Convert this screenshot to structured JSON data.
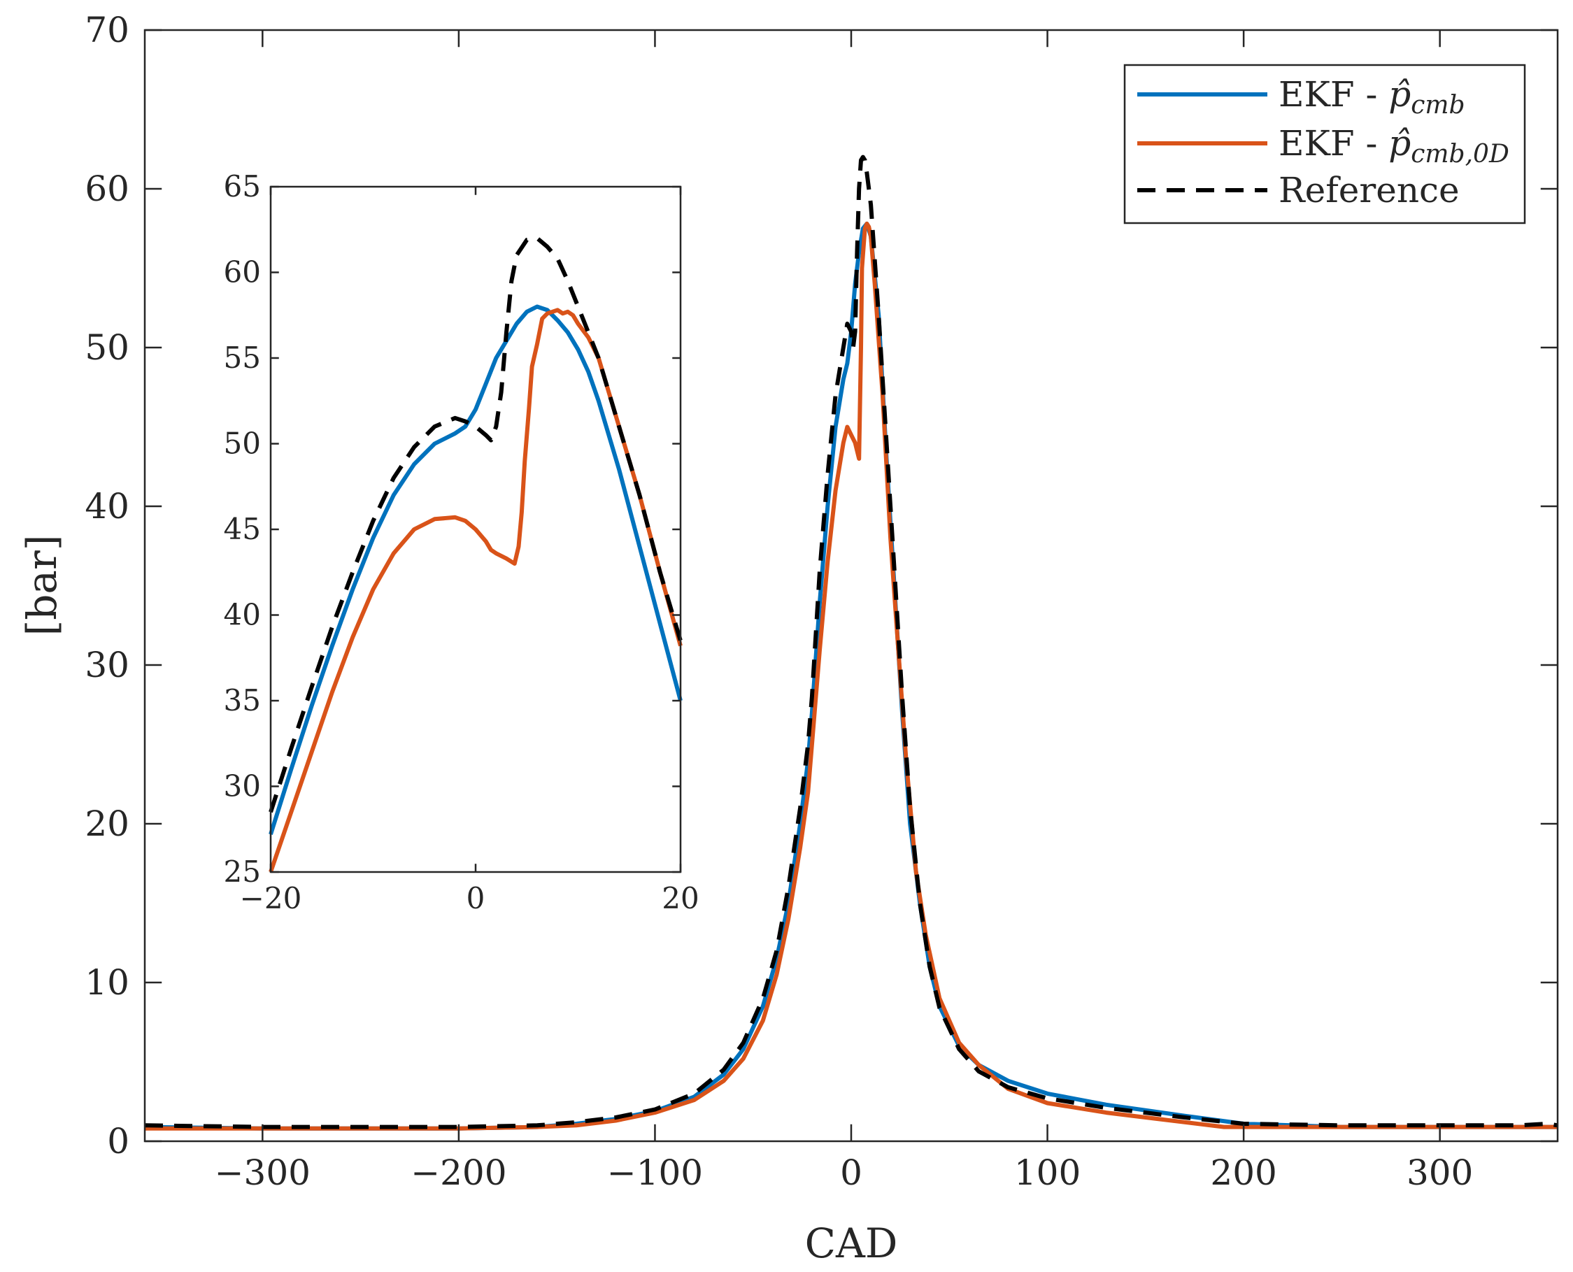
{
  "chart_data": [
    {
      "id": "main",
      "type": "line",
      "xlabel": "CAD",
      "ylabel": "[bar]",
      "xlim": [
        -360,
        360
      ],
      "ylim": [
        0,
        70
      ],
      "xticks": [
        -300,
        -200,
        -100,
        0,
        100,
        200,
        300
      ],
      "yticks": [
        0,
        10,
        20,
        30,
        40,
        50,
        60,
        70
      ],
      "xtick_labels": [
        "−300",
        "−200",
        "−100",
        "0",
        "100",
        "200",
        "300"
      ],
      "ytick_labels": [
        "0",
        "10",
        "20",
        "30",
        "40",
        "50",
        "60",
        "70"
      ],
      "legend": {
        "position": "top-right",
        "entries": [
          {
            "prefix": "EKF - ",
            "symbol": "p̂",
            "subscript": "cmb",
            "series": "ekf"
          },
          {
            "prefix": "EKF - ",
            "symbol": "p̂",
            "subscript": "cmb,0D",
            "series": "ekf0d"
          },
          {
            "prefix": "",
            "symbol": "",
            "subscript": "",
            "text": "Reference",
            "series": "ref"
          }
        ]
      },
      "series": [
        {
          "key": "ekf",
          "name": "EKF - p̂_cmb",
          "color": "#0072BD",
          "style": "solid",
          "points": [
            [
              -360,
              0.9
            ],
            [
              -300,
              0.8
            ],
            [
              -200,
              0.8
            ],
            [
              -160,
              0.9
            ],
            [
              -140,
              1.1
            ],
            [
              -120,
              1.4
            ],
            [
              -100,
              1.9
            ],
            [
              -80,
              2.8
            ],
            [
              -65,
              4.2
            ],
            [
              -55,
              5.8
            ],
            [
              -45,
              8.5
            ],
            [
              -38,
              11.5
            ],
            [
              -32,
              15
            ],
            [
              -26,
              20
            ],
            [
              -22,
              24
            ],
            [
              -20,
              27
            ],
            [
              -16,
              34
            ],
            [
              -12,
              40
            ],
            [
              -8,
              45
            ],
            [
              -4,
              48
            ],
            [
              -2,
              49
            ],
            [
              0,
              51
            ],
            [
              2,
              54
            ],
            [
              4,
              56
            ],
            [
              6,
              57.5
            ],
            [
              8,
              57.8
            ],
            [
              10,
              57
            ],
            [
              14,
              52
            ],
            [
              18,
              43
            ],
            [
              22,
              35
            ],
            [
              26,
              27
            ],
            [
              30,
              20
            ],
            [
              35,
              15
            ],
            [
              40,
              11
            ],
            [
              45,
              8.5
            ],
            [
              55,
              6
            ],
            [
              65,
              4.8
            ],
            [
              80,
              3.8
            ],
            [
              100,
              3
            ],
            [
              130,
              2.3
            ],
            [
              170,
              1.6
            ],
            [
              200,
              1.1
            ],
            [
              250,
              0.9
            ],
            [
              300,
              0.9
            ],
            [
              340,
              0.9
            ],
            [
              360,
              0.9
            ]
          ]
        },
        {
          "key": "ekf0d",
          "name": "EKF - p̂_cmb,0D",
          "color": "#D95319",
          "style": "solid",
          "points": [
            [
              -360,
              0.8
            ],
            [
              -300,
              0.8
            ],
            [
              -200,
              0.8
            ],
            [
              -160,
              0.9
            ],
            [
              -140,
              1.0
            ],
            [
              -120,
              1.3
            ],
            [
              -100,
              1.8
            ],
            [
              -80,
              2.6
            ],
            [
              -65,
              3.8
            ],
            [
              -55,
              5.2
            ],
            [
              -45,
              7.6
            ],
            [
              -38,
              10.5
            ],
            [
              -32,
              14
            ],
            [
              -26,
              18.5
            ],
            [
              -22,
              22
            ],
            [
              -20,
              25
            ],
            [
              -16,
              31
            ],
            [
              -12,
              36.5
            ],
            [
              -8,
              41
            ],
            [
              -4,
              44
            ],
            [
              -2,
              45
            ],
            [
              0,
              44.5
            ],
            [
              2,
              44
            ],
            [
              3,
              43.5
            ],
            [
              4,
              43
            ],
            [
              5,
              50
            ],
            [
              5.5,
              55
            ],
            [
              7,
              57.5
            ],
            [
              8,
              57.8
            ],
            [
              9,
              57.6
            ],
            [
              10,
              57
            ],
            [
              12,
              54
            ],
            [
              16,
              47
            ],
            [
              20,
              38
            ],
            [
              24,
              31
            ],
            [
              28,
              24
            ],
            [
              33,
              17
            ],
            [
              38,
              13
            ],
            [
              45,
              9
            ],
            [
              55,
              6.2
            ],
            [
              65,
              4.8
            ],
            [
              80,
              3.3
            ],
            [
              100,
              2.4
            ],
            [
              130,
              1.8
            ],
            [
              170,
              1.2
            ],
            [
              190,
              0.9
            ],
            [
              250,
              0.9
            ],
            [
              300,
              0.9
            ],
            [
              340,
              0.9
            ],
            [
              360,
              0.9
            ]
          ]
        },
        {
          "key": "ref",
          "name": "Reference",
          "color": "#000000",
          "style": "dashed",
          "points": [
            [
              -360,
              1.0
            ],
            [
              -300,
              0.9
            ],
            [
              -200,
              0.9
            ],
            [
              -160,
              1.0
            ],
            [
              -140,
              1.2
            ],
            [
              -120,
              1.5
            ],
            [
              -100,
              2.0
            ],
            [
              -80,
              3.0
            ],
            [
              -65,
              4.5
            ],
            [
              -55,
              6.2
            ],
            [
              -45,
              9
            ],
            [
              -38,
              12
            ],
            [
              -32,
              16
            ],
            [
              -26,
              21
            ],
            [
              -22,
              25
            ],
            [
              -20,
              28
            ],
            [
              -16,
              36
            ],
            [
              -12,
              42
            ],
            [
              -8,
              47
            ],
            [
              -4,
              50
            ],
            [
              -2,
              51.5
            ],
            [
              0,
              51
            ],
            [
              1,
              50
            ],
            [
              2,
              51
            ],
            [
              3,
              56
            ],
            [
              4,
              60
            ],
            [
              5,
              61.8
            ],
            [
              6,
              62
            ],
            [
              7,
              61.8
            ],
            [
              8,
              61
            ],
            [
              10,
              59
            ],
            [
              14,
              52
            ],
            [
              18,
              44
            ],
            [
              22,
              36
            ],
            [
              26,
              28
            ],
            [
              30,
              21
            ],
            [
              35,
              15
            ],
            [
              40,
              11
            ],
            [
              45,
              8.4
            ],
            [
              55,
              5.8
            ],
            [
              65,
              4.4
            ],
            [
              80,
              3.4
            ],
            [
              100,
              2.7
            ],
            [
              130,
              2.1
            ],
            [
              170,
              1.5
            ],
            [
              200,
              1.1
            ],
            [
              250,
              1.0
            ],
            [
              300,
              1.0
            ],
            [
              340,
              1.0
            ],
            [
              355,
              1.1
            ],
            [
              360,
              1.0
            ]
          ]
        }
      ]
    },
    {
      "id": "inset",
      "type": "line",
      "xlim": [
        -20,
        20
      ],
      "ylim": [
        25,
        65
      ],
      "xticks": [
        -20,
        0,
        20
      ],
      "yticks": [
        25,
        30,
        35,
        40,
        45,
        50,
        55,
        60,
        65
      ],
      "xtick_labels": [
        "−20",
        "0",
        "20"
      ],
      "ytick_labels": [
        "25",
        "30",
        "35",
        "40",
        "45",
        "50",
        "55",
        "60",
        "65"
      ],
      "series": [
        {
          "key": "ekf",
          "color": "#0072BD",
          "style": "solid",
          "points": [
            [
              -20,
              27.2
            ],
            [
              -18,
              31
            ],
            [
              -16,
              34.7
            ],
            [
              -14,
              38.2
            ],
            [
              -12,
              41.5
            ],
            [
              -10,
              44.5
            ],
            [
              -8,
              47
            ],
            [
              -6,
              48.8
            ],
            [
              -4,
              50
            ],
            [
              -2,
              50.6
            ],
            [
              -1,
              51
            ],
            [
              0,
              52
            ],
            [
              1,
              53.5
            ],
            [
              2,
              55
            ],
            [
              3,
              56
            ],
            [
              4,
              57
            ],
            [
              5,
              57.7
            ],
            [
              6,
              58
            ],
            [
              7,
              57.8
            ],
            [
              8,
              57.2
            ],
            [
              9,
              56.5
            ],
            [
              10,
              55.5
            ],
            [
              11,
              54.2
            ],
            [
              12,
              52.5
            ],
            [
              14,
              48.5
            ],
            [
              16,
              44
            ],
            [
              18,
              39.5
            ],
            [
              20,
              35
            ]
          ]
        },
        {
          "key": "ekf0d",
          "color": "#D95319",
          "style": "solid",
          "points": [
            [
              -20,
              25
            ],
            [
              -18,
              28.5
            ],
            [
              -16,
              32
            ],
            [
              -14,
              35.5
            ],
            [
              -12,
              38.7
            ],
            [
              -10,
              41.5
            ],
            [
              -8,
              43.6
            ],
            [
              -6,
              45
            ],
            [
              -4,
              45.6
            ],
            [
              -2,
              45.7
            ],
            [
              -1,
              45.5
            ],
            [
              0,
              45
            ],
            [
              1,
              44.3
            ],
            [
              1.5,
              43.8
            ],
            [
              2,
              43.6
            ],
            [
              3,
              43.3
            ],
            [
              3.8,
              43
            ],
            [
              4.2,
              44
            ],
            [
              4.5,
              46
            ],
            [
              4.8,
              49
            ],
            [
              5.2,
              52
            ],
            [
              5.5,
              54.5
            ],
            [
              6,
              55.8
            ],
            [
              6.5,
              57.3
            ],
            [
              7,
              57.6
            ],
            [
              7.5,
              57.7
            ],
            [
              8,
              57.8
            ],
            [
              8.5,
              57.6
            ],
            [
              9,
              57.7
            ],
            [
              9.5,
              57.5
            ],
            [
              10,
              57
            ],
            [
              11,
              56.2
            ],
            [
              12,
              55
            ],
            [
              14,
              51
            ],
            [
              16,
              47
            ],
            [
              18,
              42.5
            ],
            [
              20,
              38.2
            ]
          ]
        },
        {
          "key": "ref",
          "color": "#000000",
          "style": "dashed",
          "points": [
            [
              -20,
              28.5
            ],
            [
              -18,
              32.2
            ],
            [
              -16,
              35.8
            ],
            [
              -14,
              39.3
            ],
            [
              -12,
              42.5
            ],
            [
              -10,
              45.5
            ],
            [
              -8,
              48
            ],
            [
              -6,
              49.8
            ],
            [
              -4,
              51
            ],
            [
              -2,
              51.5
            ],
            [
              -1,
              51.3
            ],
            [
              0,
              51
            ],
            [
              1,
              50.5
            ],
            [
              1.5,
              50.2
            ],
            [
              2,
              51
            ],
            [
              2.5,
              53
            ],
            [
              3,
              56.5
            ],
            [
              3.5,
              59.5
            ],
            [
              4,
              61
            ],
            [
              5,
              61.9
            ],
            [
              6,
              62
            ],
            [
              7,
              61.5
            ],
            [
              8,
              60.8
            ],
            [
              9,
              59.5
            ],
            [
              10,
              58
            ],
            [
              12,
              55
            ],
            [
              14,
              51
            ],
            [
              16,
              47
            ],
            [
              18,
              42.5
            ],
            [
              20,
              38.5
            ]
          ]
        }
      ]
    }
  ]
}
